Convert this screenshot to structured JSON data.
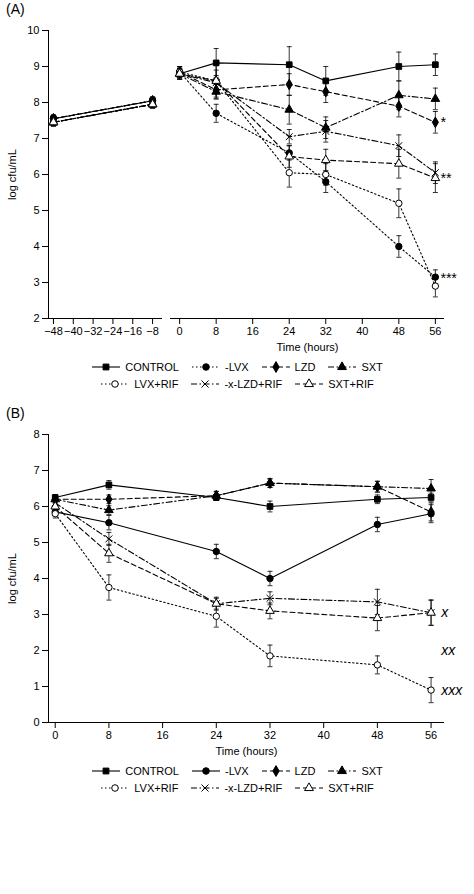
{
  "chart_data": [
    {
      "type": "line",
      "title": "(A)",
      "ylabel": "log cfu/mL",
      "color": "black",
      "xlim": [
        -50,
        -4
      ],
      "xticks": [
        -48,
        -40,
        -32,
        -24,
        -16,
        -8
      ],
      "ylim": [
        2,
        10
      ],
      "yticks": [
        2,
        3,
        4,
        5,
        6,
        7,
        8,
        9,
        10
      ],
      "series": [
        {
          "name": "CONTROL",
          "x": [
            -48,
            -8
          ],
          "values": [
            7.55,
            8.05
          ],
          "yerr": [
            0.1,
            0.1
          ],
          "marker": "square",
          "line_style": "solid"
        },
        {
          "name": "-LVX",
          "x": [
            -48,
            -8
          ],
          "values": [
            7.55,
            8.05
          ],
          "yerr": [
            0.1,
            0.1
          ],
          "marker": "circle",
          "line_style": "dotted"
        },
        {
          "name": "LZD",
          "x": [
            -48,
            -8
          ],
          "values": [
            7.55,
            8.05
          ],
          "yerr": [
            0.1,
            0.1
          ],
          "marker": "diamond",
          "line_style": "dashed"
        },
        {
          "name": "SXT",
          "x": [
            -48,
            -8
          ],
          "values": [
            7.45,
            7.95
          ],
          "yerr": [
            0.1,
            0.1
          ],
          "marker": "triangle",
          "line_style": "dashdot"
        },
        {
          "name": "LVX+RIF",
          "x": [
            -48,
            -8
          ],
          "values": [
            7.45,
            7.95
          ],
          "yerr": [
            0.1,
            0.1
          ],
          "marker": "circle_open",
          "line_style": "dotted"
        },
        {
          "name": "-x-LZD+RIF",
          "x": [
            -48,
            -8
          ],
          "values": [
            7.45,
            7.95
          ],
          "yerr": [
            0.1,
            0.1
          ],
          "marker": "times",
          "line_style": "dashdot"
        },
        {
          "name": "SXT+RIF",
          "x": [
            -48,
            -8
          ],
          "values": [
            7.45,
            7.95
          ],
          "yerr": [
            0.1,
            0.1
          ],
          "marker": "triangle_open",
          "line_style": "dashed"
        }
      ]
    },
    {
      "type": "line",
      "xlabel": "Time (hours)",
      "color": "black",
      "tick_labels": "x",
      "legend": "bottom",
      "xlim": [
        -2,
        58
      ],
      "xticks": [
        0,
        8,
        16,
        24,
        32,
        40,
        48,
        56
      ],
      "ylim": [
        2,
        10
      ],
      "yticks": [
        2,
        3,
        4,
        5,
        6,
        7,
        8,
        9,
        10
      ],
      "series": [
        {
          "name": "CONTROL",
          "x": [
            0,
            8,
            24,
            32,
            48,
            56
          ],
          "values": [
            8.8,
            9.1,
            9.05,
            8.6,
            9.0,
            9.05
          ],
          "yerr": [
            0.15,
            0.4,
            0.5,
            0.4,
            0.4,
            0.3
          ],
          "marker": "square",
          "line_style": "solid"
        },
        {
          "name": "-LVX",
          "x": [
            0,
            8,
            24,
            32,
            48,
            56
          ],
          "values": [
            8.85,
            7.7,
            6.6,
            5.8,
            4.0,
            3.15
          ],
          "yerr": [
            0.15,
            0.25,
            0.2,
            0.3,
            0.3,
            0.2
          ],
          "marker": "circle",
          "line_style": "dotted"
        },
        {
          "name": "LZD",
          "x": [
            0,
            8,
            24,
            32,
            48,
            56
          ],
          "values": [
            8.85,
            8.35,
            8.5,
            8.3,
            7.9,
            7.45
          ],
          "yerr": [
            0.15,
            0.2,
            0.3,
            0.3,
            0.3,
            0.3
          ],
          "marker": "diamond",
          "line_style": "dashed"
        },
        {
          "name": "SXT",
          "x": [
            0,
            8,
            24,
            32,
            48,
            56
          ],
          "values": [
            8.8,
            8.3,
            7.8,
            7.3,
            8.2,
            8.1
          ],
          "yerr": [
            0.15,
            0.2,
            0.4,
            0.3,
            0.4,
            0.3
          ],
          "marker": "triangle",
          "line_style": "dashdot"
        },
        {
          "name": "LVX+RIF",
          "x": [
            0,
            8,
            24,
            32,
            48,
            56
          ],
          "values": [
            8.85,
            8.6,
            6.05,
            6.0,
            5.2,
            2.9
          ],
          "yerr": [
            0.15,
            0.5,
            0.4,
            0.3,
            0.4,
            0.3
          ],
          "marker": "circle_open",
          "line_style": "dotted"
        },
        {
          "name": "-x-LZD+RIF",
          "x": [
            0,
            8,
            24,
            32,
            48,
            56
          ],
          "values": [
            8.8,
            8.55,
            7.05,
            7.2,
            6.8,
            6.05
          ],
          "yerr": [
            0.15,
            0.2,
            0.2,
            0.3,
            0.3,
            0.3
          ],
          "marker": "times",
          "line_style": "dashdot"
        },
        {
          "name": "SXT+RIF",
          "x": [
            0,
            8,
            24,
            32,
            48,
            56
          ],
          "values": [
            8.8,
            8.6,
            6.5,
            6.4,
            6.3,
            5.9
          ],
          "yerr": [
            0.15,
            0.3,
            0.3,
            0.3,
            0.4,
            0.4
          ],
          "marker": "triangle_open",
          "line_style": "dashed"
        }
      ],
      "annotations": [
        {
          "text": "*",
          "x": 57.0,
          "y": 7.45
        },
        {
          "text": "**",
          "x": 57.0,
          "y": 5.9
        },
        {
          "text": "***",
          "x": 57.0,
          "y": 3.1
        }
      ]
    },
    {
      "type": "line",
      "title": "(B)",
      "xlabel": "Time (hours)",
      "ylabel": "log cfu/mL",
      "color": "black",
      "legend": "bottom",
      "xlim": [
        -1,
        58
      ],
      "xticks": [
        0,
        8,
        16,
        24,
        32,
        40,
        48,
        56
      ],
      "ylim": [
        0,
        8
      ],
      "yticks": [
        0,
        1,
        2,
        3,
        4,
        5,
        6,
        7,
        8
      ],
      "series": [
        {
          "name": "CONTROL",
          "x": [
            0,
            8,
            24,
            32,
            48,
            56
          ],
          "values": [
            6.25,
            6.6,
            6.25,
            6.0,
            6.2,
            6.25
          ],
          "yerr": [
            0.08,
            0.12,
            0.08,
            0.15,
            0.12,
            0.12
          ],
          "marker": "square",
          "line_style": "solid"
        },
        {
          "name": "-LVX",
          "x": [
            0,
            8,
            24,
            32,
            48,
            56
          ],
          "values": [
            5.85,
            5.55,
            4.75,
            4.0,
            5.5,
            5.8
          ],
          "yerr": [
            0.1,
            0.2,
            0.2,
            0.2,
            0.2,
            0.25
          ],
          "marker": "circle",
          "line_style": "solid"
        },
        {
          "name": "LZD",
          "x": [
            0,
            8,
            24,
            32,
            48,
            56
          ],
          "values": [
            6.2,
            6.2,
            6.3,
            6.65,
            6.55,
            5.85
          ],
          "yerr": [
            0.08,
            0.12,
            0.12,
            0.12,
            0.15,
            0.25
          ],
          "marker": "diamond",
          "line_style": "dashed"
        },
        {
          "name": "SXT",
          "x": [
            0,
            8,
            24,
            32,
            48,
            56
          ],
          "values": [
            6.2,
            5.9,
            6.3,
            6.65,
            6.55,
            6.5
          ],
          "yerr": [
            0.08,
            0.12,
            0.12,
            0.12,
            0.15,
            0.25
          ],
          "marker": "triangle",
          "line_style": "dashdot"
        },
        {
          "name": "LVX+RIF",
          "x": [
            0,
            8,
            24,
            32,
            48,
            56
          ],
          "values": [
            5.8,
            3.75,
            2.95,
            1.85,
            1.6,
            0.9
          ],
          "yerr": [
            0.12,
            0.35,
            0.3,
            0.3,
            0.25,
            0.35
          ],
          "marker": "circle_open",
          "line_style": "dotted"
        },
        {
          "name": "-x-LZD+RIF",
          "x": [
            0,
            8,
            24,
            32,
            48,
            56
          ],
          "values": [
            6.1,
            5.1,
            3.3,
            3.45,
            3.35,
            3.05
          ],
          "yerr": [
            0.08,
            0.18,
            0.15,
            0.18,
            0.35,
            0.35
          ],
          "marker": "times",
          "line_style": "dashdot"
        },
        {
          "name": "SXT+RIF",
          "x": [
            0,
            8,
            24,
            32,
            48,
            56
          ],
          "values": [
            6.0,
            4.7,
            3.3,
            3.1,
            2.9,
            3.05
          ],
          "yerr": [
            0.08,
            0.25,
            0.18,
            0.22,
            0.35,
            0.35
          ],
          "marker": "triangle_open",
          "line_style": "dashed"
        }
      ],
      "annotations": [
        {
          "text": "x",
          "x": 57.5,
          "y": 3.05
        },
        {
          "text": "xx",
          "x": 57.5,
          "y": 2.0
        },
        {
          "text": "xxx",
          "x": 57.5,
          "y": 0.9
        }
      ]
    }
  ]
}
